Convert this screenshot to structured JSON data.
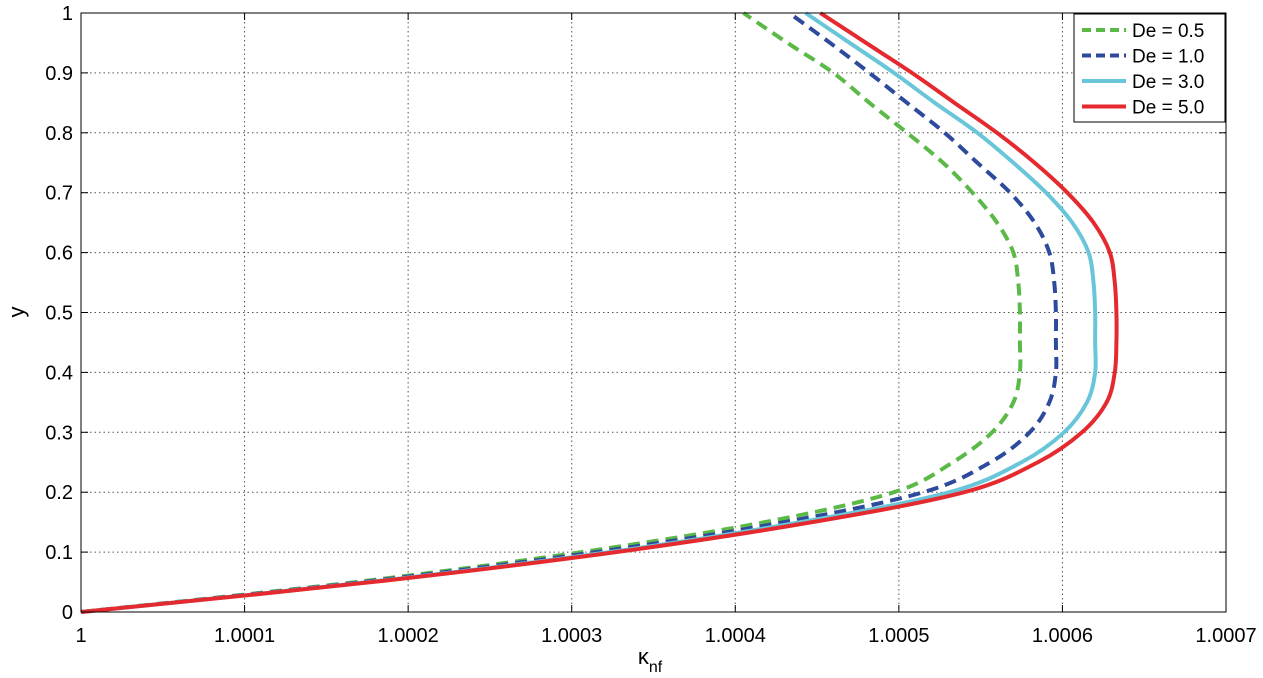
{
  "chart_data": {
    "type": "line",
    "xlabel": "κ",
    "xlabel_sub": "nf",
    "ylabel": "y",
    "xlim": [
      1.0,
      1.0007
    ],
    "ylim": [
      0,
      1
    ],
    "grid": true,
    "legend_position": "top-right",
    "x_ticks": [
      1.0,
      1.0001,
      1.0002,
      1.0003,
      1.0004,
      1.0005,
      1.0006,
      1.0007
    ],
    "x_tick_labels": [
      "1",
      "1.0001",
      "1.0002",
      "1.0003",
      "1.0004",
      "1.0005",
      "1.0006",
      "1.0007"
    ],
    "y_ticks": [
      0,
      0.1,
      0.2,
      0.3,
      0.4,
      0.5,
      0.6,
      0.7,
      0.8,
      0.9,
      1
    ],
    "y_tick_labels": [
      "0",
      "0.1",
      "0.2",
      "0.3",
      "0.4",
      "0.5",
      "0.6",
      "0.7",
      "0.8",
      "0.9",
      "1"
    ],
    "y": [
      0,
      0.05,
      0.1,
      0.15,
      0.2,
      0.25,
      0.3,
      0.35,
      0.4,
      0.45,
      0.5,
      0.55,
      0.6,
      0.65,
      0.7,
      0.75,
      0.8,
      0.85,
      0.9,
      0.95,
      1.0
    ],
    "series": [
      {
        "name": "De = 0.5",
        "color": "#5bb947",
        "dash": "dashed",
        "x": [
          1.0,
          1.000168,
          1.000306,
          1.000418,
          1.000497,
          1.000533,
          1.000557,
          1.00057,
          1.000574,
          1.000574,
          1.000574,
          1.000573,
          1.00057,
          1.00056,
          1.000545,
          1.000527,
          1.000505,
          1.000482,
          1.00046,
          1.000432,
          1.000405
        ]
      },
      {
        "name": "De = 1.0",
        "color": "#2e4a9c",
        "dash": "dashed",
        "x": [
          1.0,
          1.000172,
          1.000315,
          1.00043,
          1.000515,
          1.000556,
          1.00058,
          1.000592,
          1.000596,
          1.000596,
          1.000596,
          1.000595,
          1.000592,
          1.000583,
          1.000568,
          1.000548,
          1.000528,
          1.000505,
          1.000482,
          1.000458,
          1.000433
        ]
      },
      {
        "name": "De = 3.0",
        "color": "#69c6d9",
        "dash": "solid",
        "x": [
          1.0,
          1.000176,
          1.000323,
          1.00044,
          1.000531,
          1.000575,
          1.000601,
          1.000615,
          1.00062,
          1.00062,
          1.00062,
          1.000619,
          1.000616,
          1.000606,
          1.00059,
          1.00057,
          1.000548,
          1.000522,
          1.000497,
          1.00047,
          1.000443
        ]
      },
      {
        "name": "De = 5.0",
        "color": "#e42a2f",
        "dash": "solid",
        "x": [
          1.0,
          1.000178,
          1.000327,
          1.000447,
          1.00054,
          1.000585,
          1.000612,
          1.000627,
          1.000632,
          1.000633,
          1.000633,
          1.000632,
          1.000629,
          1.000619,
          1.000603,
          1.000583,
          1.00056,
          1.000534,
          1.000508,
          1.00048,
          1.000452
        ]
      }
    ]
  }
}
